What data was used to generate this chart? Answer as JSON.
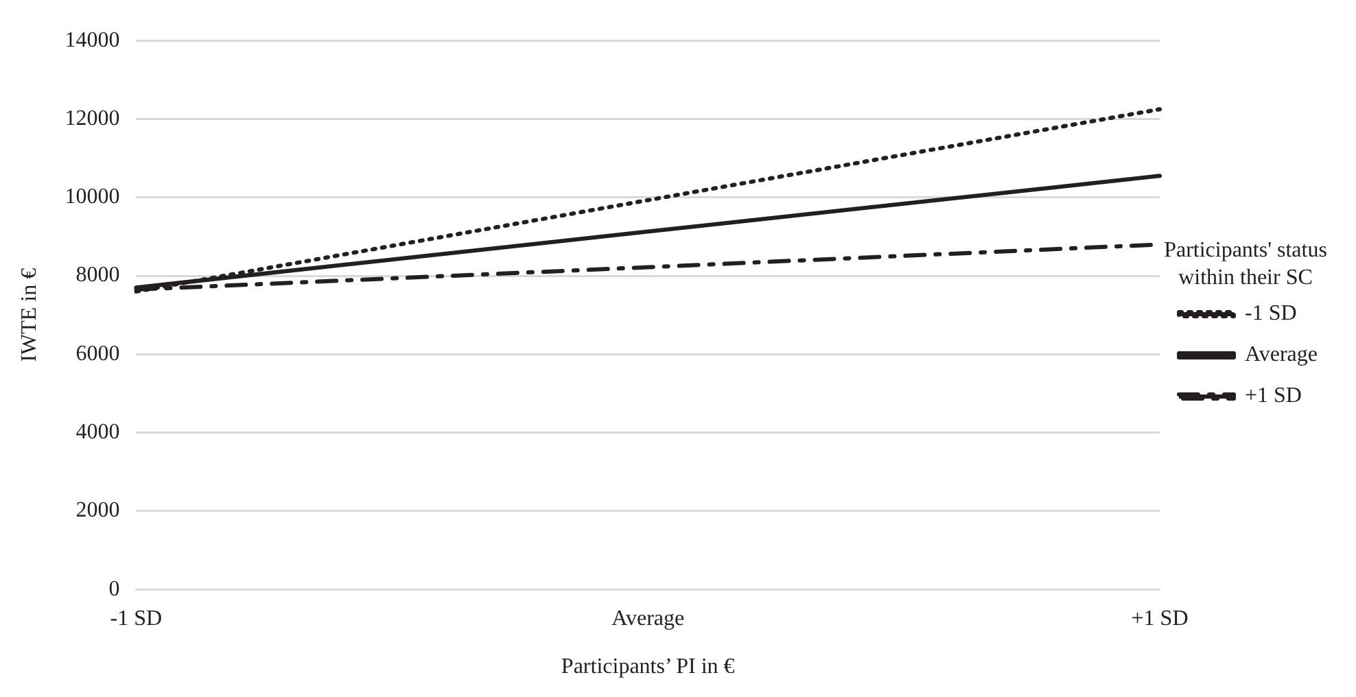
{
  "chart_data": {
    "type": "line",
    "xlabel": "Participants’ PI in €",
    "ylabel": "IWTE in €",
    "legend_title": "Participants' status within their SC",
    "categories": [
      "-1 SD",
      "Average",
      "+1 SD"
    ],
    "series": [
      {
        "name": "-1 SD",
        "color": "#231f20",
        "values": [
          7600,
          9930,
          12250
        ],
        "line_style": "dotted"
      },
      {
        "name": "Average",
        "color": "#231f20",
        "values": [
          7700,
          9130,
          10550
        ],
        "line_style": "solid"
      },
      {
        "name": "+1 SD",
        "color": "#231f20",
        "values": [
          7650,
          8220,
          8800
        ],
        "line_style": "dashed"
      }
    ],
    "ylim": [
      0,
      14000
    ],
    "yticks": [
      0,
      2000,
      4000,
      6000,
      8000,
      10000,
      12000,
      14000
    ],
    "grid": "y",
    "legend": "right",
    "marker": "none"
  }
}
